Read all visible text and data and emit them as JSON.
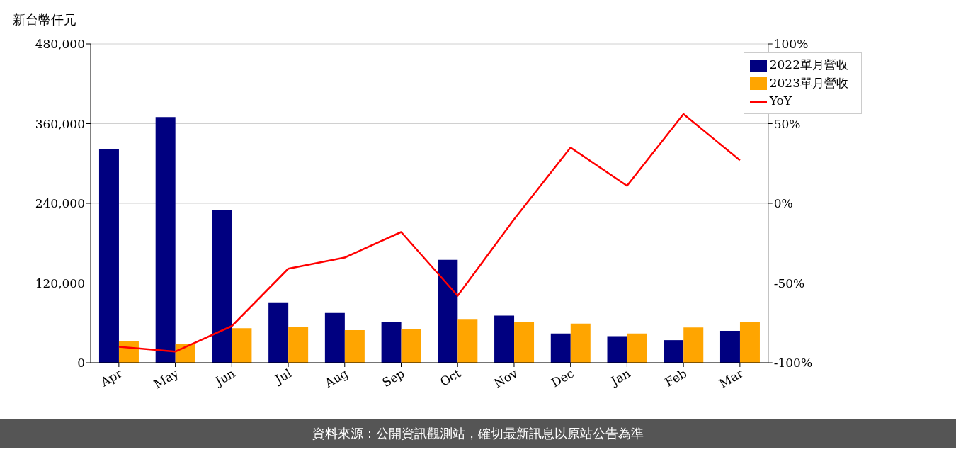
{
  "chart_data": {
    "type": "bar",
    "ylabel": "新台幣仟元",
    "categories": [
      "Apr",
      "May",
      "Jun",
      "Jul",
      "Aug",
      "Sep",
      "Oct",
      "Nov",
      "Dec",
      "Jan",
      "Feb",
      "Mar"
    ],
    "series": [
      {
        "name": "2022單月營收",
        "color": "#000080",
        "values": [
          321000,
          370000,
          230000,
          91000,
          75000,
          61000,
          155000,
          71000,
          44000,
          40000,
          34000,
          48000
        ]
      },
      {
        "name": "2023單月營收",
        "color": "#ffa500",
        "values": [
          33000,
          28000,
          52000,
          54000,
          49000,
          51000,
          66000,
          61000,
          59000,
          44000,
          53000,
          61000
        ]
      },
      {
        "name": "YoY",
        "type": "line",
        "axis": "y2",
        "color": "#ff0000",
        "values": [
          -90,
          -93,
          -77,
          -41,
          -34,
          -18,
          -58,
          -10,
          35,
          11,
          56,
          27
        ]
      }
    ],
    "ylim": [
      0,
      480000
    ],
    "yticks": [
      {
        "value": 0,
        "label": "0"
      },
      {
        "value": 120000,
        "label": "120,000"
      },
      {
        "value": 240000,
        "label": "240,000"
      },
      {
        "value": 360000,
        "label": "360,000"
      },
      {
        "value": 480000,
        "label": "480,000"
      }
    ],
    "y2lim": [
      -100,
      100
    ],
    "y2ticks": [
      {
        "value": -100,
        "label": "-100%"
      },
      {
        "value": -50,
        "label": "-50%"
      },
      {
        "value": 0,
        "label": "0%"
      },
      {
        "value": 50,
        "label": "50%"
      },
      {
        "value": 100,
        "label": "100%"
      }
    ],
    "grid": "y",
    "legend": "top right",
    "marker": "none",
    "line_style": "solid",
    "annotations": [
      "資料來源：公開資訊觀測站，確切最新訊息以原站公告為準"
    ]
  }
}
